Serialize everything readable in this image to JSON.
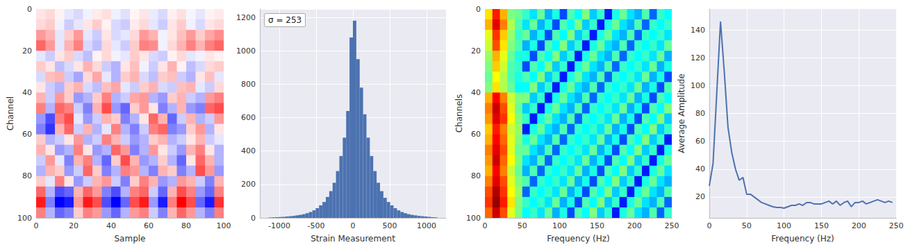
{
  "chart_data": [
    {
      "type": "heatmap",
      "xlabel": "Sample",
      "ylabel": "Channel",
      "color": "bwr",
      "xlim": [
        0,
        100
      ],
      "ylim": [
        100,
        0
      ],
      "xticks": [
        0,
        20,
        40,
        60,
        80,
        100
      ],
      "yticks": [
        0,
        20,
        40,
        60,
        80,
        100
      ],
      "x_edges": [
        0,
        5,
        10,
        15,
        20,
        25,
        30,
        35,
        40,
        45,
        50,
        55,
        60,
        65,
        70,
        75,
        80,
        85,
        90,
        95,
        100
      ],
      "y_edges": [
        0,
        5,
        10,
        15,
        20,
        25,
        30,
        35,
        40,
        45,
        50,
        55,
        60,
        65,
        70,
        75,
        80,
        85,
        90,
        95,
        100
      ],
      "color_range": [
        -1000,
        1000
      ],
      "cells": [
        [
          100,
          150,
          50,
          -100,
          -150,
          -50,
          80,
          120,
          -60,
          -120,
          40,
          100,
          -80,
          -150,
          60,
          120,
          -40,
          -100,
          50,
          80
        ],
        [
          150,
          200,
          -50,
          -200,
          -100,
          100,
          200,
          50,
          -150,
          -200,
          80,
          150,
          -100,
          -200,
          100,
          200,
          -50,
          -150,
          100,
          150
        ],
        [
          400,
          300,
          -100,
          200,
          400,
          -100,
          -200,
          100,
          -150,
          -100,
          150,
          400,
          300,
          -50,
          100,
          250,
          400,
          200,
          350,
          450
        ],
        [
          600,
          400,
          -100,
          300,
          500,
          -150,
          -250,
          150,
          -100,
          -200,
          200,
          500,
          450,
          -50,
          150,
          300,
          500,
          300,
          500,
          600
        ],
        [
          -100,
          -200,
          100,
          200,
          -150,
          -250,
          50,
          150,
          -50,
          -100,
          200,
          100,
          -150,
          -200,
          50,
          150,
          -100,
          -50,
          100,
          50
        ],
        [
          200,
          100,
          -250,
          -150,
          100,
          300,
          150,
          -200,
          -300,
          100,
          250,
          -50,
          -200,
          100,
          300,
          50,
          -250,
          -150,
          150,
          200
        ],
        [
          -150,
          250,
          300,
          -200,
          -350,
          150,
          350,
          -100,
          -300,
          200,
          300,
          -150,
          -250,
          200,
          250,
          -200,
          -300,
          100,
          250,
          -100
        ],
        [
          100,
          -200,
          -300,
          200,
          300,
          -150,
          -250,
          250,
          350,
          -100,
          -200,
          200,
          300,
          -150,
          -200,
          250,
          300,
          -100,
          -200,
          150
        ],
        [
          300,
          -200,
          400,
          200,
          -400,
          -300,
          200,
          500,
          -300,
          -200,
          350,
          400,
          -300,
          -400,
          200,
          300,
          -200,
          -300,
          400,
          500
        ],
        [
          500,
          -300,
          600,
          500,
          -200,
          -500,
          300,
          700,
          -400,
          -600,
          200,
          400,
          100,
          -500,
          -300,
          300,
          -400,
          -500,
          600,
          700
        ],
        [
          -400,
          -700,
          500,
          700,
          -100,
          -400,
          -200,
          300,
          200,
          -500,
          -300,
          100,
          600,
          300,
          -600,
          -200,
          300,
          -300,
          -200,
          400
        ],
        [
          -500,
          -800,
          300,
          600,
          -200,
          300,
          -300,
          -100,
          500,
          -300,
          -500,
          -200,
          500,
          600,
          -500,
          -400,
          200,
          400,
          -300,
          100
        ],
        [
          200,
          -300,
          -200,
          100,
          400,
          -300,
          -200,
          500,
          300,
          -200,
          -400,
          -300,
          200,
          300,
          -300,
          -200,
          100,
          300,
          -200,
          -100
        ],
        [
          300,
          100,
          -400,
          -300,
          500,
          100,
          -400,
          -300,
          600,
          400,
          -500,
          -300,
          400,
          100,
          -200,
          -400,
          300,
          500,
          100,
          -300
        ],
        [
          -200,
          400,
          -100,
          -500,
          300,
          500,
          -300,
          -600,
          200,
          700,
          300,
          -400,
          -300,
          200,
          -300,
          -600,
          100,
          600,
          300,
          -300
        ],
        [
          -300,
          300,
          200,
          -400,
          -200,
          600,
          200,
          -500,
          -300,
          500,
          400,
          -300,
          -500,
          300,
          200,
          -500,
          -300,
          700,
          400,
          -400
        ],
        [
          200,
          -100,
          500,
          100,
          -400,
          -200,
          300,
          400,
          -200,
          -500,
          200,
          500,
          300,
          -400,
          -300,
          400,
          300,
          -200,
          -500,
          300
        ],
        [
          600,
          -300,
          -700,
          -600,
          300,
          600,
          400,
          -500,
          -700,
          -300,
          500,
          600,
          -200,
          -600,
          300,
          700,
          500,
          -400,
          -600,
          500
        ],
        [
          900,
          -500,
          -1000,
          -900,
          400,
          900,
          700,
          -700,
          -1000,
          -600,
          700,
          900,
          -400,
          -900,
          500,
          1000,
          700,
          -600,
          -900,
          800
        ],
        [
          500,
          -300,
          -600,
          -500,
          200,
          500,
          400,
          -400,
          -600,
          -300,
          400,
          500,
          -200,
          -500,
          300,
          600,
          400,
          -300,
          -500,
          500
        ]
      ]
    },
    {
      "type": "histogram",
      "xlabel": "Strain Measurement",
      "annotation": "σ = 253",
      "color": "#4c72b0",
      "grid": true,
      "xlim": [
        -1265,
        1265
      ],
      "ylim": [
        0,
        1250
      ],
      "xticks": [
        -1000,
        -500,
        0,
        500,
        1000
      ],
      "yticks": [
        0,
        200,
        400,
        600,
        800,
        1000,
        1200
      ],
      "bins": [
        -1150,
        -1104,
        -1058,
        -1012,
        -966,
        -920,
        -874,
        -828,
        -782,
        -736,
        -690,
        -644,
        -598,
        -552,
        -506,
        -460,
        -414,
        -368,
        -322,
        -276,
        -230,
        -184,
        -138,
        -92,
        -46,
        0,
        46,
        92,
        138,
        184,
        230,
        276,
        322,
        368,
        414,
        460,
        506,
        552,
        598,
        644,
        690,
        736,
        782,
        828,
        874,
        920,
        966,
        1012,
        1058,
        1104,
        1150
      ],
      "counts": [
        2,
        3,
        4,
        5,
        6,
        8,
        10,
        12,
        15,
        18,
        22,
        28,
        35,
        45,
        58,
        75,
        95,
        125,
        160,
        210,
        280,
        370,
        480,
        640,
        1080,
        1180,
        950,
        780,
        620,
        480,
        370,
        280,
        210,
        160,
        120,
        95,
        75,
        58,
        45,
        35,
        28,
        22,
        18,
        15,
        12,
        10,
        8,
        6,
        4,
        3
      ]
    },
    {
      "type": "heatmap",
      "xlabel": "Frequency (Hz)",
      "ylabel": "Channels",
      "color": "jet",
      "xlim": [
        0,
        250
      ],
      "ylim": [
        100,
        0
      ],
      "xticks": [
        0,
        50,
        100,
        150,
        200,
        250
      ],
      "yticks": [
        0,
        20,
        40,
        60,
        80,
        100
      ],
      "x_edges": [
        0,
        10,
        20,
        30,
        40,
        50,
        60,
        70,
        80,
        90,
        100,
        110,
        120,
        130,
        140,
        150,
        160,
        170,
        180,
        190,
        200,
        210,
        220,
        230,
        240,
        250
      ],
      "y_edges": [
        0,
        5,
        10,
        15,
        20,
        25,
        30,
        35,
        40,
        45,
        50,
        55,
        60,
        65,
        70,
        75,
        80,
        85,
        90,
        95,
        100
      ],
      "color_range": [
        0,
        200
      ],
      "cells": [
        [
          130,
          170,
          140,
          100,
          95,
          85,
          70,
          95,
          60,
          80,
          40,
          90,
          75,
          100,
          65,
          85,
          30,
          80,
          95,
          70,
          60,
          90,
          45,
          85,
          75
        ],
        [
          140,
          180,
          150,
          110,
          90,
          70,
          95,
          60,
          80,
          40,
          90,
          75,
          100,
          65,
          85,
          30,
          80,
          95,
          70,
          60,
          90,
          45,
          85,
          75,
          85
        ],
        [
          120,
          165,
          135,
          105,
          85,
          95,
          60,
          80,
          40,
          90,
          75,
          100,
          65,
          85,
          30,
          80,
          95,
          70,
          60,
          90,
          45,
          85,
          75,
          85,
          70
        ],
        [
          115,
          160,
          130,
          100,
          90,
          60,
          80,
          40,
          90,
          75,
          100,
          65,
          85,
          30,
          80,
          95,
          70,
          60,
          90,
          45,
          85,
          75,
          85,
          70,
          95
        ],
        [
          105,
          140,
          120,
          95,
          80,
          80,
          40,
          90,
          75,
          100,
          65,
          85,
          30,
          80,
          95,
          70,
          60,
          90,
          45,
          85,
          75,
          85,
          70,
          95,
          60
        ],
        [
          100,
          135,
          115,
          90,
          85,
          40,
          90,
          75,
          100,
          65,
          85,
          30,
          80,
          95,
          70,
          60,
          90,
          45,
          85,
          75,
          85,
          70,
          95,
          60,
          80
        ],
        [
          95,
          125,
          110,
          90,
          80,
          90,
          75,
          100,
          65,
          85,
          30,
          80,
          95,
          70,
          60,
          90,
          45,
          85,
          75,
          85,
          70,
          95,
          60,
          80,
          40
        ],
        [
          100,
          130,
          110,
          95,
          75,
          75,
          100,
          65,
          85,
          30,
          80,
          95,
          70,
          60,
          90,
          45,
          85,
          75,
          85,
          70,
          95,
          60,
          80,
          40,
          90
        ],
        [
          140,
          175,
          150,
          115,
          100,
          100,
          65,
          85,
          30,
          80,
          95,
          70,
          60,
          90,
          45,
          85,
          75,
          85,
          70,
          95,
          60,
          80,
          40,
          90,
          75
        ],
        [
          150,
          185,
          160,
          120,
          95,
          65,
          85,
          30,
          80,
          95,
          70,
          60,
          90,
          45,
          85,
          75,
          85,
          70,
          95,
          60,
          80,
          40,
          90,
          75,
          100
        ],
        [
          145,
          180,
          165,
          125,
          100,
          85,
          30,
          80,
          95,
          70,
          60,
          90,
          45,
          85,
          75,
          85,
          70,
          95,
          60,
          80,
          40,
          90,
          75,
          100,
          65
        ],
        [
          135,
          170,
          150,
          115,
          105,
          30,
          80,
          95,
          70,
          60,
          90,
          45,
          85,
          75,
          85,
          70,
          95,
          60,
          80,
          40,
          90,
          75,
          100,
          65,
          85
        ],
        [
          140,
          175,
          155,
          120,
          100,
          80,
          95,
          70,
          60,
          90,
          45,
          85,
          75,
          85,
          70,
          95,
          60,
          80,
          40,
          90,
          75,
          100,
          65,
          85,
          30
        ],
        [
          150,
          180,
          160,
          120,
          95,
          95,
          70,
          60,
          90,
          45,
          85,
          75,
          85,
          70,
          95,
          60,
          80,
          40,
          90,
          75,
          100,
          65,
          85,
          30,
          80
        ],
        [
          145,
          185,
          155,
          125,
          100,
          70,
          60,
          90,
          45,
          85,
          75,
          85,
          70,
          95,
          60,
          80,
          40,
          90,
          75,
          100,
          65,
          85,
          30,
          80,
          95
        ],
        [
          140,
          175,
          150,
          115,
          95,
          60,
          90,
          45,
          85,
          75,
          85,
          70,
          95,
          60,
          80,
          40,
          90,
          75,
          100,
          65,
          85,
          30,
          80,
          95,
          70
        ],
        [
          150,
          180,
          160,
          120,
          100,
          90,
          45,
          85,
          75,
          85,
          70,
          95,
          60,
          80,
          40,
          90,
          75,
          100,
          65,
          85,
          30,
          80,
          95,
          70,
          60
        ],
        [
          160,
          190,
          165,
          125,
          105,
          45,
          85,
          75,
          85,
          70,
          95,
          60,
          80,
          40,
          90,
          75,
          100,
          65,
          85,
          30,
          80,
          95,
          70,
          60,
          90
        ],
        [
          165,
          195,
          170,
          130,
          100,
          85,
          75,
          85,
          70,
          95,
          60,
          80,
          40,
          90,
          75,
          100,
          65,
          85,
          30,
          80,
          95,
          70,
          60,
          90,
          45
        ],
        [
          155,
          185,
          160,
          120,
          100,
          75,
          85,
          70,
          95,
          60,
          80,
          40,
          90,
          75,
          100,
          65,
          85,
          30,
          80,
          95,
          70,
          60,
          90,
          45,
          85
        ]
      ]
    },
    {
      "type": "line",
      "xlabel": "Frequency (Hz)",
      "ylabel": "Average Amplitude",
      "color": "#4c72b0",
      "grid": true,
      "xlim": [
        0,
        250
      ],
      "ylim": [
        5,
        155
      ],
      "xticks": [
        0,
        50,
        100,
        150,
        200,
        250
      ],
      "yticks": [
        20,
        40,
        60,
        80,
        100,
        120,
        140
      ],
      "x": [
        0,
        5,
        10,
        15,
        20,
        25,
        30,
        35,
        40,
        45,
        50,
        55,
        60,
        65,
        70,
        75,
        80,
        85,
        90,
        95,
        100,
        105,
        110,
        115,
        120,
        125,
        130,
        135,
        140,
        145,
        150,
        155,
        160,
        165,
        170,
        175,
        180,
        185,
        190,
        195,
        200,
        205,
        210,
        215,
        220,
        225,
        230,
        235,
        240,
        245
      ],
      "values": [
        28,
        44,
        95,
        146,
        110,
        70,
        52,
        40,
        32,
        34,
        22,
        22,
        20,
        18,
        16,
        15,
        14,
        13,
        12.5,
        12.5,
        12,
        13,
        14,
        14,
        15,
        14,
        16,
        16,
        15,
        15,
        15,
        16,
        17,
        15,
        17,
        14,
        16,
        17,
        13,
        16,
        16,
        17,
        15,
        16,
        17,
        18,
        17,
        16,
        17,
        16
      ]
    }
  ]
}
